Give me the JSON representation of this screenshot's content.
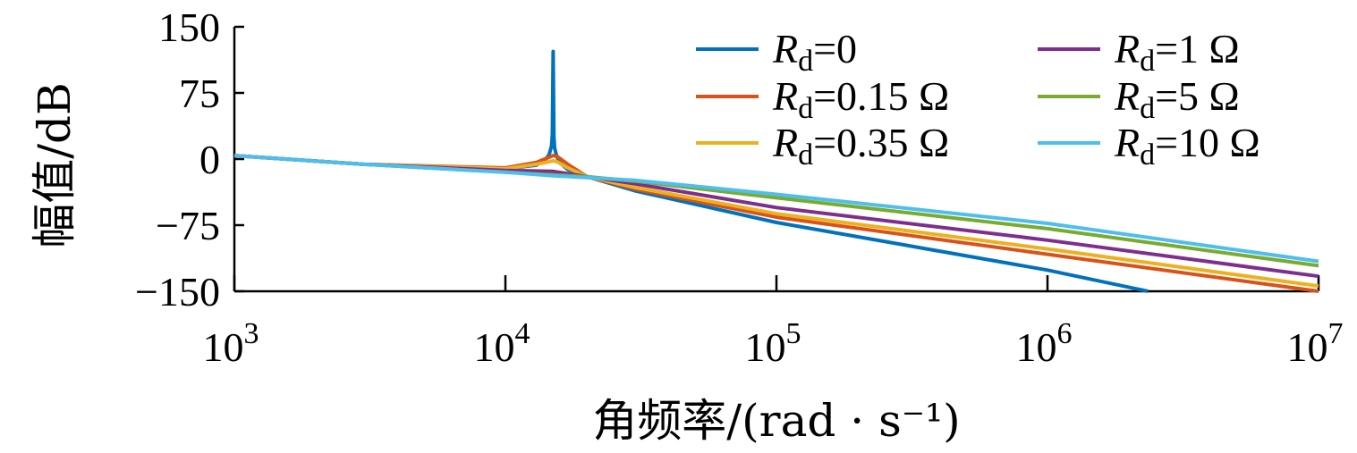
{
  "chart_data": {
    "type": "line",
    "xlabel": "角频率/(rad · s⁻¹)",
    "ylabel": "幅值/dB",
    "xscale": "log",
    "xlim": [
      1000,
      10000000
    ],
    "ylim": [
      -150,
      150
    ],
    "x_ticks": [
      1000,
      10000,
      100000,
      1000000,
      10000000
    ],
    "x_tick_labels": [
      {
        "base": "10",
        "exp": "3"
      },
      {
        "base": "10",
        "exp": "4"
      },
      {
        "base": "10",
        "exp": "5"
      },
      {
        "base": "10",
        "exp": "6"
      },
      {
        "base": "10",
        "exp": "7"
      }
    ],
    "y_ticks": [
      150,
      75,
      0,
      -75,
      -150
    ],
    "y_tick_labels": [
      "150",
      "75",
      "0",
      "−75",
      "−150"
    ],
    "grid": false,
    "legend_position": "top-right",
    "series": [
      {
        "name_var": "R",
        "name_sub": "d",
        "name_rest": "=0",
        "color": "#0072BD",
        "x": [
          1000,
          3000,
          10000,
          13000,
          14000,
          14500,
          14800,
          14900,
          15000,
          15100,
          15200,
          15500,
          16000,
          17000,
          20000,
          30000,
          100000,
          1000000,
          2350000
        ],
        "y": [
          4,
          -6,
          -11,
          -7,
          -1,
          5,
          15,
          28,
          122,
          25,
          12,
          2,
          -5,
          -12,
          -20,
          -36,
          -72,
          -126,
          -150
        ]
      },
      {
        "name_var": "R",
        "name_sub": "d",
        "name_rest": "=0.15 Ω",
        "color": "#D95319",
        "x": [
          1000,
          3000,
          10000,
          13000,
          14500,
          15000,
          15500,
          17000,
          20000,
          30000,
          100000,
          1000000,
          10000000
        ],
        "y": [
          4,
          -6,
          -10,
          -4,
          2,
          4,
          3,
          -6,
          -20,
          -34,
          -66,
          -108,
          -150
        ]
      },
      {
        "name_var": "R",
        "name_sub": "d",
        "name_rest": "=0.35 Ω",
        "color": "#EDB120",
        "x": [
          1000,
          3000,
          10000,
          13000,
          14500,
          15000,
          15500,
          17000,
          20000,
          30000,
          100000,
          1000000,
          10000000
        ],
        "y": [
          4,
          -6,
          -11,
          -6,
          -3,
          -2,
          -3,
          -10,
          -20,
          -32,
          -62,
          -102,
          -144
        ]
      },
      {
        "name_var": "R",
        "name_sub": "d",
        "name_rest": "=1 Ω",
        "color": "#7E2F8E",
        "x": [
          1000,
          3000,
          10000,
          15000,
          20000,
          30000,
          100000,
          1000000,
          10000000
        ],
        "y": [
          4,
          -6,
          -13,
          -14,
          -20,
          -28,
          -55,
          -92,
          -133
        ]
      },
      {
        "name_var": "R",
        "name_sub": "d",
        "name_rest": "=5 Ω",
        "color": "#77AC30",
        "x": [
          1000,
          3000,
          10000,
          15000,
          20000,
          30000,
          100000,
          1000000,
          10000000
        ],
        "y": [
          4,
          -6,
          -15,
          -18,
          -20,
          -25,
          -44,
          -79,
          -121
        ]
      },
      {
        "name_var": "R",
        "name_sub": "d",
        "name_rest": "=10 Ω",
        "color": "#4DBEEE",
        "x": [
          1000,
          3000,
          10000,
          15000,
          20000,
          30000,
          100000,
          1000000,
          10000000
        ],
        "y": [
          4,
          -6,
          -15,
          -19,
          -21,
          -24,
          -40,
          -73,
          -116
        ]
      }
    ]
  }
}
